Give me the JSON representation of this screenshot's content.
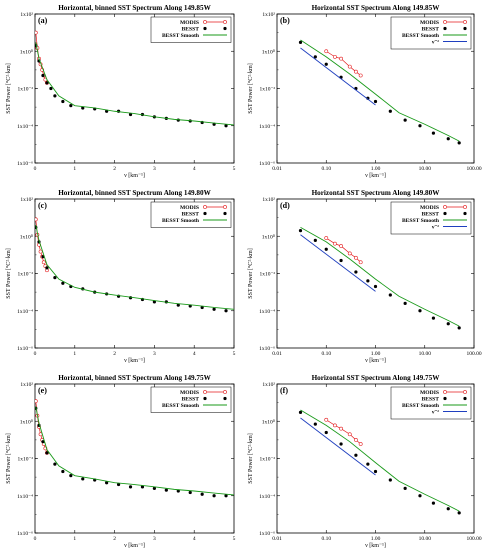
{
  "chart_data": [
    {
      "panel": "(a)",
      "type": "scatter",
      "title": "Horizontal, binned SST Spectrum Along 149.85W",
      "xlabel": "ν [km⁻¹]",
      "ylabel": "SST Power [°C²·km]",
      "xscale": "linear",
      "yscale": "log",
      "xlim": [
        0,
        5
      ],
      "ylim": [
        1e-06,
        100
      ],
      "xticks": [
        "0",
        "1",
        "2",
        "3",
        "4",
        "5"
      ],
      "yticks": [
        "1x10⁻⁶",
        "1x10⁻⁴",
        "1x10⁻²",
        "1x10⁰",
        "1x10²"
      ],
      "legend": "top-right",
      "series": [
        {
          "name": "MODIS",
          "color": "#e41a1c",
          "marker": "open-circle",
          "x": [
            0.02,
            0.06,
            0.1,
            0.14,
            0.18,
            0.22,
            0.26,
            0.3
          ],
          "y": [
            10,
            1.5,
            0.4,
            0.2,
            0.1,
            0.05,
            0.03,
            0.02
          ]
        },
        {
          "name": "BESST",
          "color": "#000000",
          "marker": "filled-circle",
          "x": [
            0.02,
            0.1,
            0.2,
            0.3,
            0.4,
            0.5,
            0.7,
            0.9,
            1.2,
            1.5,
            1.8,
            2.1,
            2.4,
            2.7,
            3.0,
            3.3,
            3.6,
            3.9,
            4.2,
            4.5,
            4.8
          ],
          "y": [
            2,
            0.3,
            0.05,
            0.02,
            0.01,
            0.004,
            0.002,
            0.0012,
            0.0009,
            0.0008,
            0.0006,
            0.0006,
            0.0004,
            0.0004,
            0.0003,
            0.00025,
            0.0002,
            0.00018,
            0.00015,
            0.00012,
            0.0001
          ]
        },
        {
          "name": "BESST Smooth",
          "color": "#1a9a1a",
          "marker": "line",
          "x": [
            0.02,
            0.1,
            0.3,
            0.6,
            1.0,
            1.5,
            2.0,
            2.5,
            3.0,
            3.5,
            4.0,
            4.5,
            5.0
          ],
          "y": [
            3,
            0.4,
            0.03,
            0.004,
            0.0012,
            0.0009,
            0.0006,
            0.00045,
            0.0003,
            0.00022,
            0.00018,
            0.00014,
            0.00011
          ]
        }
      ]
    },
    {
      "panel": "(b)",
      "type": "scatter",
      "title": "Horizontal SST Spectrum Along 149.85W",
      "xlabel": "ν [km⁻¹]",
      "ylabel": "SST Power [°C²·km]",
      "xscale": "log",
      "yscale": "log",
      "xlim": [
        0.01,
        100
      ],
      "ylim": [
        1e-06,
        100
      ],
      "xticks": [
        "0.01",
        "0.10",
        "1.00",
        "10.00",
        "100.00"
      ],
      "yticks": [
        "1x10⁻⁶",
        "1x10⁻⁴",
        "1x10⁻²",
        "1x10⁰",
        "1x10²"
      ],
      "legend": "top-right",
      "series": [
        {
          "name": "MODIS",
          "color": "#e41a1c",
          "marker": "open-circle",
          "x": [
            0.1,
            0.15,
            0.2,
            0.3,
            0.4,
            0.5
          ],
          "y": [
            1.0,
            0.5,
            0.4,
            0.15,
            0.08,
            0.05
          ]
        },
        {
          "name": "BESST",
          "color": "#000000",
          "marker": "filled-circle",
          "x": [
            0.03,
            0.06,
            0.1,
            0.2,
            0.4,
            0.7,
            1.0,
            2.0,
            4.0,
            8.0,
            15,
            30,
            50
          ],
          "y": [
            3,
            0.5,
            0.2,
            0.04,
            0.01,
            0.003,
            0.002,
            0.0006,
            0.0002,
            0.0001,
            4e-05,
            2e-05,
            1.2e-05
          ]
        },
        {
          "name": "BESST Smooth",
          "color": "#1a9a1a",
          "marker": "line",
          "x": [
            0.03,
            0.1,
            0.3,
            1.0,
            3.0,
            10,
            30,
            50
          ],
          "y": [
            4,
            0.5,
            0.06,
            0.005,
            0.0005,
            0.00012,
            3e-05,
            1.5e-05
          ]
        },
        {
          "name": "ν⁻²",
          "color": "#1f3fbf",
          "marker": "line",
          "x": [
            0.03,
            1.0
          ],
          "y": [
            1.5,
            0.0013
          ]
        }
      ]
    },
    {
      "panel": "(c)",
      "type": "scatter",
      "title": "Horizontal, binned SST Spectrum Along 149.80W",
      "xlabel": "ν [km⁻¹]",
      "ylabel": "SST Power [°C²·km]",
      "xscale": "linear",
      "yscale": "log",
      "xlim": [
        0,
        5
      ],
      "ylim": [
        1e-06,
        100
      ],
      "xticks": [
        "0",
        "1",
        "2",
        "3",
        "4",
        "5"
      ],
      "yticks": [
        "1x10⁻⁶",
        "1x10⁻⁴",
        "1x10⁻²",
        "1x10⁰",
        "1x10²"
      ],
      "legend": "top-right",
      "series": [
        {
          "name": "MODIS",
          "color": "#e41a1c",
          "marker": "open-circle",
          "x": [
            0.02,
            0.06,
            0.1,
            0.14,
            0.18,
            0.22,
            0.26,
            0.3
          ],
          "y": [
            8,
            1.2,
            0.35,
            0.15,
            0.08,
            0.04,
            0.025,
            0.015
          ]
        },
        {
          "name": "BESST",
          "color": "#000000",
          "marker": "filled-circle",
          "x": [
            0.02,
            0.1,
            0.2,
            0.3,
            0.5,
            0.7,
            0.9,
            1.2,
            1.5,
            1.8,
            2.1,
            2.4,
            2.7,
            3.0,
            3.3,
            3.6,
            3.9,
            4.2,
            4.5,
            4.8
          ],
          "y": [
            3,
            0.5,
            0.08,
            0.02,
            0.006,
            0.003,
            0.002,
            0.0015,
            0.001,
            0.0008,
            0.0006,
            0.0005,
            0.0004,
            0.0003,
            0.0003,
            0.0002,
            0.00018,
            0.00015,
            0.00012,
            0.0001
          ]
        },
        {
          "name": "BESST Smooth",
          "color": "#1a9a1a",
          "marker": "line",
          "x": [
            0.02,
            0.1,
            0.3,
            0.6,
            1.0,
            1.5,
            2.0,
            2.5,
            3.0,
            3.5,
            4.0,
            4.5,
            5.0
          ],
          "y": [
            4,
            0.6,
            0.03,
            0.005,
            0.0018,
            0.001,
            0.0007,
            0.0005,
            0.00035,
            0.00025,
            0.0002,
            0.00015,
            0.00012
          ]
        }
      ]
    },
    {
      "panel": "(d)",
      "type": "scatter",
      "title": "Horizontal SST Spectrum Along 149.80W",
      "xlabel": "ν [km⁻¹]",
      "ylabel": "SST Power [°C²·km]",
      "xscale": "log",
      "yscale": "log",
      "xlim": [
        0.01,
        100
      ],
      "ylim": [
        1e-06,
        100
      ],
      "xticks": [
        "0.01",
        "0.10",
        "1.00",
        "10.00",
        "100.00"
      ],
      "yticks": [
        "1x10⁻⁶",
        "1x10⁻⁴",
        "1x10⁻²",
        "1x10⁰",
        "1x10²"
      ],
      "legend": "top-right",
      "series": [
        {
          "name": "MODIS",
          "color": "#e41a1c",
          "marker": "open-circle",
          "x": [
            0.1,
            0.15,
            0.2,
            0.3,
            0.4,
            0.5
          ],
          "y": [
            0.8,
            0.4,
            0.3,
            0.12,
            0.07,
            0.04
          ]
        },
        {
          "name": "BESST",
          "color": "#000000",
          "marker": "filled-circle",
          "x": [
            0.03,
            0.06,
            0.1,
            0.2,
            0.4,
            0.7,
            1.0,
            2.0,
            4.0,
            8.0,
            15,
            30,
            50
          ],
          "y": [
            2,
            0.6,
            0.2,
            0.05,
            0.012,
            0.004,
            0.002,
            0.0007,
            0.00025,
            0.0001,
            4e-05,
            2e-05,
            1.2e-05
          ]
        },
        {
          "name": "BESST Smooth",
          "color": "#1a9a1a",
          "marker": "line",
          "x": [
            0.03,
            0.1,
            0.3,
            1.0,
            3.0,
            10,
            30,
            50
          ],
          "y": [
            3,
            0.5,
            0.06,
            0.005,
            0.0006,
            0.00012,
            3e-05,
            1.5e-05
          ]
        },
        {
          "name": "ν⁻²",
          "color": "#1f3fbf",
          "marker": "line",
          "x": [
            0.03,
            1.0
          ],
          "y": [
            1.2,
            0.0011
          ]
        }
      ]
    },
    {
      "panel": "(e)",
      "type": "scatter",
      "title": "Horizontal, binned SST Spectrum Along 149.75W",
      "xlabel": "ν [km⁻¹]",
      "ylabel": "SST Power [°C²·km]",
      "xscale": "linear",
      "yscale": "log",
      "xlim": [
        0,
        5
      ],
      "ylim": [
        1e-06,
        100
      ],
      "xticks": [
        "0",
        "1",
        "2",
        "3",
        "4",
        "5"
      ],
      "yticks": [
        "1x10⁻⁶",
        "1x10⁻⁴",
        "1x10⁻²",
        "1x10⁰",
        "1x10²"
      ],
      "legend": "top-right",
      "series": [
        {
          "name": "MODIS",
          "color": "#e41a1c",
          "marker": "open-circle",
          "x": [
            0.02,
            0.06,
            0.1,
            0.14,
            0.18,
            0.22,
            0.26,
            0.3
          ],
          "y": [
            12,
            2,
            0.5,
            0.2,
            0.1,
            0.06,
            0.035,
            0.02
          ]
        },
        {
          "name": "BESST",
          "color": "#000000",
          "marker": "filled-circle",
          "x": [
            0.02,
            0.1,
            0.2,
            0.3,
            0.5,
            0.7,
            0.9,
            1.2,
            1.5,
            1.8,
            2.1,
            2.4,
            2.7,
            3.0,
            3.3,
            3.6,
            3.9,
            4.2,
            4.5,
            4.8
          ],
          "y": [
            5,
            0.6,
            0.08,
            0.02,
            0.005,
            0.002,
            0.0012,
            0.0008,
            0.0007,
            0.0005,
            0.0004,
            0.0003,
            0.0003,
            0.00025,
            0.0002,
            0.00018,
            0.00015,
            0.00012,
            0.0001,
            0.0001
          ]
        },
        {
          "name": "BESST Smooth",
          "color": "#1a9a1a",
          "marker": "line",
          "x": [
            0.02,
            0.1,
            0.3,
            0.6,
            1.0,
            1.5,
            2.0,
            2.5,
            3.0,
            3.5,
            4.0,
            4.5,
            5.0
          ],
          "y": [
            6,
            0.8,
            0.03,
            0.004,
            0.0012,
            0.0008,
            0.0005,
            0.0004,
            0.0003,
            0.00022,
            0.00018,
            0.00014,
            0.00011
          ]
        }
      ]
    },
    {
      "panel": "(f)",
      "type": "scatter",
      "title": "Horizontal SST Spectrum Along 149.75W",
      "xlabel": "ν [km⁻¹]",
      "ylabel": "SST Power [°C²·km]",
      "xscale": "log",
      "yscale": "log",
      "xlim": [
        0.01,
        100
      ],
      "ylim": [
        1e-06,
        100
      ],
      "xticks": [
        "0.01",
        "0.10",
        "1.00",
        "10.00",
        "100.00"
      ],
      "yticks": [
        "1x10⁻⁶",
        "1x10⁻⁴",
        "1x10⁻²",
        "1x10⁰",
        "1x10²"
      ],
      "legend": "top-right",
      "series": [
        {
          "name": "MODIS",
          "color": "#e41a1c",
          "marker": "open-circle",
          "x": [
            0.1,
            0.15,
            0.2,
            0.3,
            0.4,
            0.5
          ],
          "y": [
            1.2,
            0.6,
            0.4,
            0.2,
            0.1,
            0.06
          ]
        },
        {
          "name": "BESST",
          "color": "#000000",
          "marker": "filled-circle",
          "x": [
            0.03,
            0.06,
            0.1,
            0.2,
            0.4,
            0.7,
            1.0,
            2.0,
            4.0,
            8.0,
            15,
            30,
            50
          ],
          "y": [
            3,
            0.7,
            0.25,
            0.06,
            0.015,
            0.005,
            0.002,
            0.0007,
            0.00025,
            0.0001,
            4e-05,
            2e-05,
            1.2e-05
          ]
        },
        {
          "name": "BESST Smooth",
          "color": "#1a9a1a",
          "marker": "line",
          "x": [
            0.03,
            0.1,
            0.3,
            1.0,
            3.0,
            10,
            30,
            50
          ],
          "y": [
            4,
            0.6,
            0.08,
            0.006,
            0.0006,
            0.00012,
            3e-05,
            1.5e-05
          ]
        },
        {
          "name": "ν⁻²",
          "color": "#1f3fbf",
          "marker": "line",
          "x": [
            0.03,
            1.0
          ],
          "y": [
            1.5,
            0.0013
          ]
        }
      ]
    }
  ]
}
